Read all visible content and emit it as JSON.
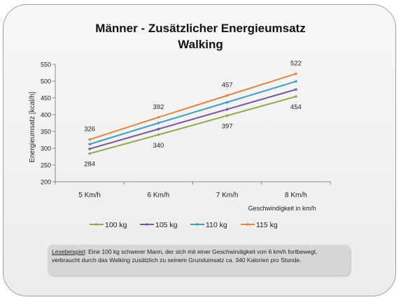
{
  "chart_data": {
    "type": "line",
    "title": "Männer - Zusätzlicher Energieumsatz",
    "subtitle": "Walking",
    "xlabel": "Geschwindigkeit in km/h",
    "ylabel": "Energieumsatz [kcal/h]",
    "categories": [
      "5 Km/h",
      "6 Km/h",
      "7 Km/h",
      "8 Km/h"
    ],
    "ylim": [
      200,
      550
    ],
    "yticks": [
      200,
      250,
      300,
      350,
      400,
      450,
      500,
      550
    ],
    "legend_position": "bottom",
    "grid": false,
    "series": [
      {
        "name": "100 kg",
        "color": "#8aab4a",
        "values": [
          284,
          340,
          397,
          454
        ]
      },
      {
        "name": "105 kg",
        "color": "#7a56a0",
        "values": [
          298,
          357,
          416,
          475
        ]
      },
      {
        "name": "110 kg",
        "color": "#3e9ec4",
        "values": [
          312,
          375,
          437,
          499
        ]
      },
      {
        "name": "115 kg",
        "color": "#e0843e",
        "values": [
          326,
          392,
          457,
          522
        ]
      }
    ],
    "data_labels": [
      {
        "series": 0,
        "index": 0,
        "text": "284",
        "pos": "below"
      },
      {
        "series": 0,
        "index": 1,
        "text": "340",
        "pos": "below"
      },
      {
        "series": 0,
        "index": 2,
        "text": "397",
        "pos": "below"
      },
      {
        "series": 0,
        "index": 3,
        "text": "454",
        "pos": "below"
      },
      {
        "series": 3,
        "index": 0,
        "text": "326",
        "pos": "above"
      },
      {
        "series": 3,
        "index": 1,
        "text": "392",
        "pos": "above"
      },
      {
        "series": 3,
        "index": 2,
        "text": "457",
        "pos": "above"
      },
      {
        "series": 3,
        "index": 3,
        "text": "522",
        "pos": "above"
      }
    ]
  },
  "note": {
    "label": "Lesebeispiel",
    "text": ":  Eine 100 kg schwerer Mann, der sich mit einer Geschwindigkeit von 6 km/h fortbewegt, verbraucht durch das Walking zusätzlich zu seinem Grundumsatz ca. 340 Kalorien pro Stunde."
  }
}
